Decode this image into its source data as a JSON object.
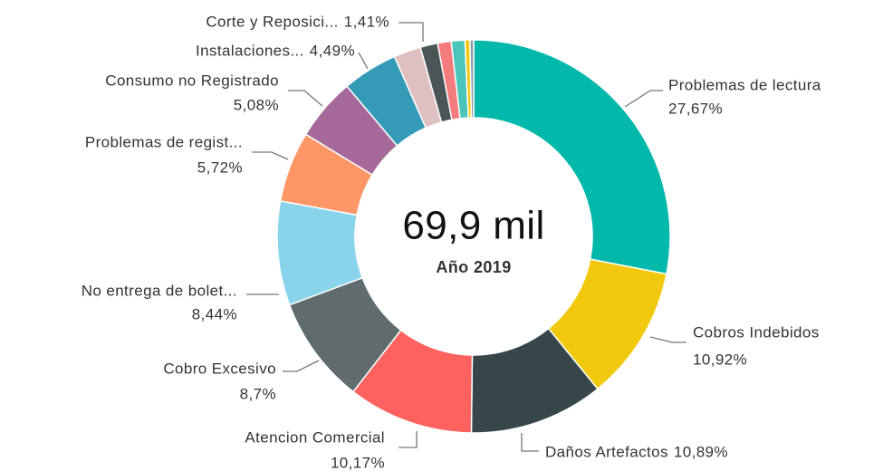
{
  "chart_data": {
    "type": "donut",
    "center_text": "69,9 mil",
    "center_subtext": "Año 2019",
    "categories": [
      "Problemas de lectura",
      "Cobros Indebidos",
      "Daños Artefactos",
      "Atencion Comercial",
      "Cobro Excesivo",
      "No entrega de bolet...",
      "Problemas de regist...",
      "Consumo no Registrado",
      "Instalaciones...",
      null,
      "Corte y Reposici...",
      null,
      null,
      null,
      null
    ],
    "values": [
      27.67,
      10.92,
      10.89,
      10.17,
      8.7,
      8.44,
      5.72,
      5.08,
      4.49,
      2.2,
      1.41,
      1.1,
      1.1,
      0.4,
      0.3
    ],
    "value_labels": [
      "27,67%",
      "10,92%",
      "10,89%",
      "10,17%",
      "8,7%",
      "8,44%",
      "5,72%",
      "5,08%",
      "4,49%",
      null,
      "1,41%",
      null,
      null,
      null,
      null
    ],
    "colors": [
      "#01B8AA",
      "#F2C80F",
      "#374649",
      "#FD625E",
      "#5F6B6D",
      "#8AD4EB",
      "#FE9666",
      "#A66999",
      "#3599B8",
      "#DFBFBF",
      "#4A5558",
      "#F47C7C",
      "#4BC4B9",
      "#F2C80F",
      "#8A9BA8"
    ]
  }
}
